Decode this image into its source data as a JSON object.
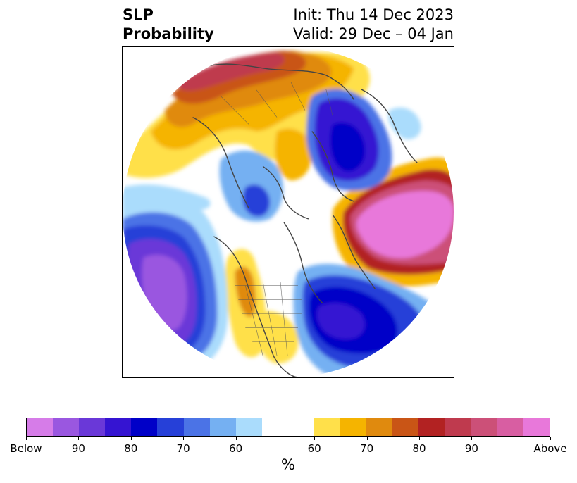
{
  "title": {
    "left_line1": "SLP",
    "left_line2": "Probability",
    "right_line1": "Init: Thu 14 Dec 2023",
    "right_line2": "Valid: 29 Dec – 04 Jan"
  },
  "colorbar": {
    "label": "%",
    "colors": [
      "#d67ce8",
      "#9a57e0",
      "#6a38d8",
      "#3514d2",
      "#0000c8",
      "#2640d8",
      "#4b73e6",
      "#75b0f2",
      "#aadcfc",
      "#ffffff",
      "#ffffff",
      "#ffe04a",
      "#f5b400",
      "#e08a0e",
      "#c95516",
      "#b22222",
      "#bf3a4e",
      "#cc5078",
      "#d85ea2",
      "#e878da"
    ],
    "ticks": [
      "Below",
      "90",
      "80",
      "70",
      "60",
      "60",
      "70",
      "80",
      "90",
      "Above"
    ]
  },
  "map": {
    "projection": "north-polar-stereographic",
    "field": "sea-level-pressure probability"
  }
}
